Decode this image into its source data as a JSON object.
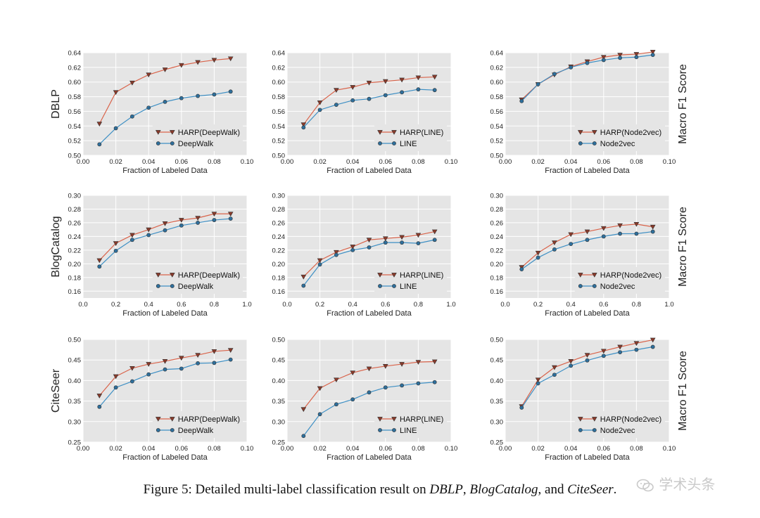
{
  "caption": {
    "prefix": "Figure 5: Detailed multi-label classification result on ",
    "ds1": "DBLP",
    "sep1": ", ",
    "ds2": "BlogCatalog",
    "sep2": ", and ",
    "ds3": "CiteSeer",
    "suffix": "."
  },
  "watermark": {
    "text": "学术头条",
    "icon": "wechat-icon"
  },
  "colors": {
    "harp": "#d9634a",
    "base": "#3d8fc4",
    "plot_bg": "#e5e5e5",
    "grid": "#ffffff"
  },
  "chart_data": [
    {
      "type": "line",
      "row_label": "DBLP",
      "right_label": "",
      "xlabel": "Fraction of Labeled Data",
      "xlim": [
        0.0,
        0.1
      ],
      "xticks": [
        "0.00",
        "0.02",
        "0.04",
        "0.06",
        "0.08",
        "0.10"
      ],
      "ylim": [
        0.5,
        0.64
      ],
      "yticks": [
        "0.50",
        "0.52",
        "0.54",
        "0.56",
        "0.58",
        "0.60",
        "0.62",
        "0.64"
      ],
      "legend_position": "lower-right",
      "x": [
        0.01,
        0.02,
        0.03,
        0.04,
        0.05,
        0.06,
        0.07,
        0.08,
        0.09
      ],
      "series": [
        {
          "name": "HARP(DeepWalk)",
          "marker": "triangle-down",
          "values": [
            0.543,
            0.586,
            0.599,
            0.61,
            0.617,
            0.623,
            0.627,
            0.63,
            0.632
          ]
        },
        {
          "name": "DeepWalk",
          "marker": "circle",
          "values": [
            0.515,
            0.537,
            0.553,
            0.565,
            0.573,
            0.578,
            0.581,
            0.583,
            0.587
          ]
        }
      ]
    },
    {
      "type": "line",
      "row_label": "",
      "right_label": "",
      "xlabel": "Fraction of Labeled Data",
      "xlim": [
        0.0,
        0.1
      ],
      "xticks": [
        "0.00",
        "0.02",
        "0.04",
        "0.06",
        "0.08",
        "0.10"
      ],
      "ylim": [
        0.5,
        0.64
      ],
      "yticks": [
        "0.50",
        "0.52",
        "0.54",
        "0.56",
        "0.58",
        "0.60",
        "0.62",
        "0.64"
      ],
      "legend_position": "lower-right",
      "x": [
        0.01,
        0.02,
        0.03,
        0.04,
        0.05,
        0.06,
        0.07,
        0.08,
        0.09
      ],
      "series": [
        {
          "name": "HARP(LINE)",
          "marker": "triangle-down",
          "values": [
            0.542,
            0.572,
            0.589,
            0.593,
            0.599,
            0.601,
            0.603,
            0.606,
            0.607
          ]
        },
        {
          "name": "LINE",
          "marker": "circle",
          "values": [
            0.538,
            0.562,
            0.569,
            0.575,
            0.577,
            0.582,
            0.586,
            0.59,
            0.589
          ]
        }
      ]
    },
    {
      "type": "line",
      "row_label": "",
      "right_label": "Macro F1 Score",
      "xlabel": "Fraction of Labeled Data",
      "xlim": [
        0.0,
        0.1
      ],
      "xticks": [
        "0.00",
        "0.02",
        "0.04",
        "0.06",
        "0.08",
        "0.10"
      ],
      "ylim": [
        0.5,
        0.64
      ],
      "yticks": [
        "0.50",
        "0.52",
        "0.54",
        "0.56",
        "0.58",
        "0.60",
        "0.62",
        "0.64"
      ],
      "legend_position": "lower-right",
      "x": [
        0.01,
        0.02,
        0.03,
        0.04,
        0.05,
        0.06,
        0.07,
        0.08,
        0.09
      ],
      "series": [
        {
          "name": "HARP(Node2vec)",
          "marker": "triangle-down",
          "values": [
            0.576,
            0.597,
            0.61,
            0.621,
            0.628,
            0.634,
            0.637,
            0.638,
            0.641
          ]
        },
        {
          "name": "Node2vec",
          "marker": "circle",
          "values": [
            0.574,
            0.597,
            0.611,
            0.62,
            0.626,
            0.63,
            0.633,
            0.634,
            0.637
          ]
        }
      ]
    },
    {
      "type": "line",
      "row_label": "BlogCatalog",
      "right_label": "",
      "xlabel": "Fraction of Labeled Data",
      "xlim": [
        0.0,
        1.0
      ],
      "xticks": [
        "0.0",
        "0.2",
        "0.4",
        "0.6",
        "0.8",
        "1.0"
      ],
      "ylim": [
        0.15,
        0.3
      ],
      "yticks": [
        "0.16",
        "0.18",
        "0.20",
        "0.22",
        "0.24",
        "0.26",
        "0.28",
        "0.30"
      ],
      "legend_position": "lower-right",
      "x": [
        0.1,
        0.2,
        0.3,
        0.4,
        0.5,
        0.6,
        0.7,
        0.8,
        0.9
      ],
      "series": [
        {
          "name": "HARP(DeepWalk)",
          "marker": "triangle-down",
          "values": [
            0.205,
            0.23,
            0.242,
            0.25,
            0.259,
            0.264,
            0.267,
            0.273,
            0.273
          ]
        },
        {
          "name": "DeepWalk",
          "marker": "circle",
          "values": [
            0.196,
            0.219,
            0.235,
            0.242,
            0.249,
            0.256,
            0.26,
            0.264,
            0.266
          ]
        }
      ]
    },
    {
      "type": "line",
      "row_label": "",
      "right_label": "",
      "xlabel": "Fraction of Labeled Data",
      "xlim": [
        0.0,
        1.0
      ],
      "xticks": [
        "0.0",
        "0.2",
        "0.4",
        "0.6",
        "0.8",
        "1.0"
      ],
      "ylim": [
        0.15,
        0.3
      ],
      "yticks": [
        "0.16",
        "0.18",
        "0.20",
        "0.22",
        "0.24",
        "0.26",
        "0.28",
        "0.30"
      ],
      "legend_position": "lower-right",
      "x": [
        0.1,
        0.2,
        0.3,
        0.4,
        0.5,
        0.6,
        0.7,
        0.8,
        0.9
      ],
      "series": [
        {
          "name": "HARP(LINE)",
          "marker": "triangle-down",
          "values": [
            0.181,
            0.205,
            0.217,
            0.225,
            0.235,
            0.237,
            0.239,
            0.242,
            0.247
          ]
        },
        {
          "name": "LINE",
          "marker": "circle",
          "values": [
            0.168,
            0.199,
            0.213,
            0.22,
            0.224,
            0.231,
            0.231,
            0.23,
            0.235
          ]
        }
      ]
    },
    {
      "type": "line",
      "row_label": "",
      "right_label": "Macro F1 Score",
      "xlabel": "Fraction of Labeled Data",
      "xlim": [
        0.0,
        1.0
      ],
      "xticks": [
        "0.0",
        "0.2",
        "0.4",
        "0.6",
        "0.8",
        "1.0"
      ],
      "ylim": [
        0.15,
        0.3
      ],
      "yticks": [
        "0.16",
        "0.18",
        "0.20",
        "0.22",
        "0.24",
        "0.26",
        "0.28",
        "0.30"
      ],
      "legend_position": "lower-right",
      "x": [
        0.1,
        0.2,
        0.3,
        0.4,
        0.5,
        0.6,
        0.7,
        0.8,
        0.9
      ],
      "series": [
        {
          "name": "HARP(Node2vec)",
          "marker": "triangle-down",
          "values": [
            0.195,
            0.216,
            0.231,
            0.243,
            0.247,
            0.252,
            0.256,
            0.258,
            0.254
          ]
        },
        {
          "name": "Node2vec",
          "marker": "circle",
          "values": [
            0.192,
            0.209,
            0.221,
            0.229,
            0.235,
            0.24,
            0.244,
            0.244,
            0.247
          ]
        }
      ]
    },
    {
      "type": "line",
      "row_label": "CiteSeer",
      "right_label": "",
      "xlabel": "Fraction of Labeled Data",
      "xlim": [
        0.0,
        0.1
      ],
      "xticks": [
        "0.00",
        "0.02",
        "0.04",
        "0.06",
        "0.08",
        "0.10"
      ],
      "ylim": [
        0.25,
        0.5
      ],
      "yticks": [
        "0.25",
        "0.30",
        "0.35",
        "0.40",
        "0.45",
        "0.50"
      ],
      "legend_position": "lower-right",
      "x": [
        0.01,
        0.02,
        0.03,
        0.04,
        0.05,
        0.06,
        0.07,
        0.08,
        0.09
      ],
      "series": [
        {
          "name": "HARP(DeepWalk)",
          "marker": "triangle-down",
          "values": [
            0.363,
            0.41,
            0.43,
            0.44,
            0.447,
            0.455,
            0.462,
            0.471,
            0.474
          ]
        },
        {
          "name": "DeepWalk",
          "marker": "circle",
          "values": [
            0.336,
            0.383,
            0.398,
            0.415,
            0.427,
            0.429,
            0.442,
            0.443,
            0.451
          ]
        }
      ]
    },
    {
      "type": "line",
      "row_label": "",
      "right_label": "",
      "xlabel": "Fraction of Labeled Data",
      "xlim": [
        0.0,
        0.1
      ],
      "xticks": [
        "0.00",
        "0.02",
        "0.04",
        "0.06",
        "0.08",
        "0.10"
      ],
      "ylim": [
        0.25,
        0.5
      ],
      "yticks": [
        "0.25",
        "0.30",
        "0.35",
        "0.40",
        "0.45",
        "0.50"
      ],
      "legend_position": "lower-right",
      "x": [
        0.01,
        0.02,
        0.03,
        0.04,
        0.05,
        0.06,
        0.07,
        0.08,
        0.09
      ],
      "series": [
        {
          "name": "HARP(LINE)",
          "marker": "triangle-down",
          "values": [
            0.33,
            0.381,
            0.402,
            0.419,
            0.429,
            0.435,
            0.44,
            0.445,
            0.446
          ]
        },
        {
          "name": "LINE",
          "marker": "circle",
          "values": [
            0.265,
            0.318,
            0.342,
            0.354,
            0.371,
            0.383,
            0.388,
            0.393,
            0.396
          ]
        }
      ]
    },
    {
      "type": "line",
      "row_label": "",
      "right_label": "Macro F1 Score",
      "xlabel": "Fraction of Labeled Data",
      "xlim": [
        0.0,
        0.1
      ],
      "xticks": [
        "0.00",
        "0.02",
        "0.04",
        "0.06",
        "0.08",
        "0.10"
      ],
      "ylim": [
        0.25,
        0.5
      ],
      "yticks": [
        "0.25",
        "0.30",
        "0.35",
        "0.40",
        "0.45",
        "0.50"
      ],
      "legend_position": "lower-right",
      "x": [
        0.01,
        0.02,
        0.03,
        0.04,
        0.05,
        0.06,
        0.07,
        0.08,
        0.09
      ],
      "series": [
        {
          "name": "HARP(Node2vec)",
          "marker": "triangle-down",
          "values": [
            0.337,
            0.402,
            0.432,
            0.447,
            0.462,
            0.472,
            0.482,
            0.491,
            0.499
          ]
        },
        {
          "name": "Node2vec",
          "marker": "circle",
          "values": [
            0.334,
            0.393,
            0.414,
            0.436,
            0.449,
            0.46,
            0.469,
            0.475,
            0.482
          ]
        }
      ]
    }
  ]
}
